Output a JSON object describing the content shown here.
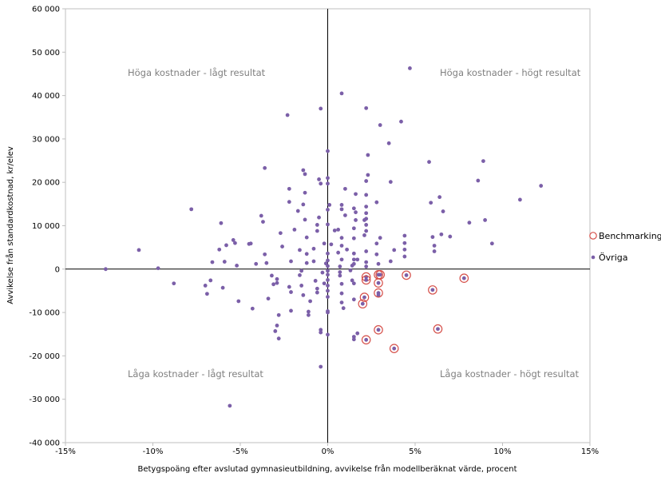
{
  "chart_data": {
    "type": "scatter",
    "xlabel": "Betygspoäng efter avslutad gymnasieutbildning, avvikelse från modellberäknat värde, procent",
    "ylabel": "Avvikelse från standardkostnad, kr/elev",
    "xlim": [
      -0.15,
      0.15
    ],
    "ylim": [
      -40000,
      60000
    ],
    "x_ticks": [
      -0.15,
      -0.1,
      -0.05,
      0,
      0.05,
      0.1,
      0.15
    ],
    "x_tick_labels": [
      "-15%",
      "-10%",
      "-5%",
      "0%",
      "5%",
      "10%",
      "15%"
    ],
    "y_ticks": [
      -40000,
      -30000,
      -20000,
      -10000,
      0,
      10000,
      20000,
      30000,
      40000,
      50000,
      60000
    ],
    "y_tick_labels": [
      "-40 000",
      "-30 000",
      "-20 000",
      "-10 000",
      "0",
      "10 000",
      "20 000",
      "30 000",
      "40 000",
      "50 000",
      "60 000"
    ],
    "grid": false,
    "legend_position": "right",
    "colors": {
      "ovriga": "#7b5fa8",
      "benchmarking_ring": "#d6504a",
      "axis": "#000000",
      "quadrant_label": "#808080"
    },
    "quadrant_labels": {
      "top_left": "Höga kostnader - lågt resultat",
      "top_right": "Höga kostnader - högt resultat",
      "bottom_left": "Låga kostnader - lågt resultat",
      "bottom_right": "Låga kostnader - högt resultat"
    },
    "series": [
      {
        "name": "Benchmarking",
        "marker": "ring",
        "points": [
          [
            0.022,
            -1800
          ],
          [
            0.022,
            -2500
          ],
          [
            0.021,
            -6500
          ],
          [
            0.02,
            -8000
          ],
          [
            0.029,
            -1300
          ],
          [
            0.03,
            -1300
          ],
          [
            0.029,
            -3200
          ],
          [
            0.029,
            -5500
          ],
          [
            0.045,
            -1400
          ],
          [
            0.06,
            -4800
          ],
          [
            0.078,
            -2100
          ],
          [
            0.029,
            -14000
          ],
          [
            0.022,
            -16300
          ],
          [
            0.038,
            -18300
          ],
          [
            0.063,
            -13800
          ]
        ]
      },
      {
        "name": "Övriga",
        "marker": "dot",
        "points": [
          [
            -0.127,
            0
          ],
          [
            -0.108,
            4400
          ],
          [
            -0.097,
            200
          ],
          [
            -0.088,
            -3300
          ],
          [
            -0.078,
            13800
          ],
          [
            -0.07,
            -3800
          ],
          [
            -0.069,
            -5700
          ],
          [
            -0.067,
            -2600
          ],
          [
            -0.066,
            1600
          ],
          [
            -0.062,
            4500
          ],
          [
            -0.061,
            10600
          ],
          [
            -0.06,
            -4300
          ],
          [
            -0.059,
            1700
          ],
          [
            -0.058,
            5500
          ],
          [
            -0.056,
            -31500
          ],
          [
            -0.054,
            6700
          ],
          [
            -0.053,
            6000
          ],
          [
            -0.052,
            800
          ],
          [
            -0.051,
            -7400
          ],
          [
            -0.045,
            5800
          ],
          [
            -0.044,
            5900
          ],
          [
            -0.043,
            -9100
          ],
          [
            -0.041,
            1200
          ],
          [
            -0.038,
            12300
          ],
          [
            -0.037,
            10900
          ],
          [
            -0.036,
            23300
          ],
          [
            -0.036,
            3400
          ],
          [
            -0.035,
            1400
          ],
          [
            -0.034,
            -6800
          ],
          [
            -0.032,
            -1500
          ],
          [
            -0.031,
            -3500
          ],
          [
            -0.03,
            -14300
          ],
          [
            -0.029,
            -13000
          ],
          [
            -0.029,
            -3200
          ],
          [
            -0.029,
            -2300
          ],
          [
            -0.028,
            -10600
          ],
          [
            -0.028,
            -16000
          ],
          [
            -0.027,
            8300
          ],
          [
            -0.026,
            5200
          ],
          [
            -0.023,
            35500
          ],
          [
            -0.022,
            18500
          ],
          [
            -0.022,
            15500
          ],
          [
            -0.022,
            -4100
          ],
          [
            -0.021,
            -5300
          ],
          [
            -0.021,
            -9600
          ],
          [
            -0.021,
            1800
          ],
          [
            -0.019,
            9100
          ],
          [
            -0.017,
            13400
          ],
          [
            -0.016,
            4400
          ],
          [
            -0.016,
            -1400
          ],
          [
            -0.015,
            -400
          ],
          [
            -0.015,
            -3800
          ],
          [
            -0.014,
            -6000
          ],
          [
            -0.014,
            14900
          ],
          [
            -0.014,
            22800
          ],
          [
            -0.013,
            21900
          ],
          [
            -0.013,
            17600
          ],
          [
            -0.013,
            11400
          ],
          [
            -0.012,
            7300
          ],
          [
            -0.012,
            3500
          ],
          [
            -0.012,
            1400
          ],
          [
            -0.011,
            -10600
          ],
          [
            -0.011,
            -9800
          ],
          [
            -0.01,
            -7400
          ],
          [
            -0.008,
            4700
          ],
          [
            -0.008,
            1800
          ],
          [
            -0.007,
            -2700
          ],
          [
            -0.006,
            -4500
          ],
          [
            -0.006,
            -5400
          ],
          [
            -0.006,
            8800
          ],
          [
            -0.006,
            10200
          ],
          [
            -0.005,
            11900
          ],
          [
            -0.005,
            20700
          ],
          [
            -0.004,
            19700
          ],
          [
            -0.004,
            37000
          ],
          [
            -0.004,
            -14000
          ],
          [
            -0.004,
            -14600
          ],
          [
            -0.004,
            -22500
          ],
          [
            -0.003,
            -800
          ],
          [
            -0.002,
            5900
          ],
          [
            -0.002,
            -3300
          ],
          [
            -0.001,
            1300
          ],
          [
            0.0,
            27200
          ],
          [
            0.0,
            21000
          ],
          [
            0.0,
            19700
          ],
          [
            0.0,
            13700
          ],
          [
            0.0,
            10300
          ],
          [
            0.0,
            3600
          ],
          [
            0.0,
            2000
          ],
          [
            0.0,
            700
          ],
          [
            0.0,
            -400
          ],
          [
            0.0,
            -1300
          ],
          [
            0.0,
            -2500
          ],
          [
            0.0,
            -3800
          ],
          [
            0.0,
            -5000
          ],
          [
            0.0,
            -6400
          ],
          [
            0.0,
            -9700
          ],
          [
            0.0,
            -10000
          ],
          [
            0.0,
            -15100
          ],
          [
            0.001,
            14800
          ],
          [
            0.002,
            5700
          ],
          [
            0.004,
            8900
          ],
          [
            0.006,
            9100
          ],
          [
            0.006,
            3800
          ],
          [
            0.007,
            600
          ],
          [
            0.007,
            -700
          ],
          [
            0.007,
            -1500
          ],
          [
            0.008,
            40500
          ],
          [
            0.008,
            14800
          ],
          [
            0.008,
            13800
          ],
          [
            0.008,
            7200
          ],
          [
            0.008,
            5400
          ],
          [
            0.008,
            2200
          ],
          [
            0.008,
            -3400
          ],
          [
            0.008,
            -5600
          ],
          [
            0.008,
            -7700
          ],
          [
            0.009,
            -9000
          ],
          [
            0.01,
            18500
          ],
          [
            0.01,
            12400
          ],
          [
            0.011,
            4500
          ],
          [
            0.013,
            -300
          ],
          [
            0.014,
            800
          ],
          [
            0.014,
            -2600
          ],
          [
            0.015,
            14000
          ],
          [
            0.015,
            9400
          ],
          [
            0.015,
            7100
          ],
          [
            0.015,
            3600
          ],
          [
            0.015,
            2200
          ],
          [
            0.015,
            1200
          ],
          [
            0.015,
            -3300
          ],
          [
            0.015,
            -7000
          ],
          [
            0.015,
            -15600
          ],
          [
            0.015,
            -16200
          ],
          [
            0.016,
            17300
          ],
          [
            0.016,
            13100
          ],
          [
            0.016,
            11300
          ],
          [
            0.017,
            2200
          ],
          [
            0.017,
            -14800
          ],
          [
            0.021,
            11300
          ],
          [
            0.021,
            7800
          ],
          [
            0.022,
            37100
          ],
          [
            0.022,
            20300
          ],
          [
            0.022,
            17100
          ],
          [
            0.022,
            14400
          ],
          [
            0.022,
            12900
          ],
          [
            0.022,
            11600
          ],
          [
            0.022,
            10200
          ],
          [
            0.022,
            8800
          ],
          [
            0.022,
            4100
          ],
          [
            0.022,
            1600
          ],
          [
            0.022,
            600
          ],
          [
            0.023,
            26300
          ],
          [
            0.023,
            21700
          ],
          [
            0.028,
            15400
          ],
          [
            0.028,
            5900
          ],
          [
            0.028,
            3400
          ],
          [
            0.029,
            1200
          ],
          [
            0.029,
            -6000
          ],
          [
            0.03,
            33200
          ],
          [
            0.03,
            7200
          ],
          [
            0.035,
            29000
          ],
          [
            0.036,
            20100
          ],
          [
            0.036,
            1800
          ],
          [
            0.038,
            4400
          ],
          [
            0.042,
            34000
          ],
          [
            0.044,
            7700
          ],
          [
            0.044,
            6000
          ],
          [
            0.044,
            4500
          ],
          [
            0.044,
            2900
          ],
          [
            0.047,
            46300
          ],
          [
            0.058,
            24700
          ],
          [
            0.059,
            15300
          ],
          [
            0.06,
            7400
          ],
          [
            0.061,
            5400
          ],
          [
            0.061,
            4100
          ],
          [
            0.064,
            16600
          ],
          [
            0.065,
            8000
          ],
          [
            0.066,
            13300
          ],
          [
            0.07,
            7500
          ],
          [
            0.081,
            10700
          ],
          [
            0.086,
            20400
          ],
          [
            0.089,
            24900
          ],
          [
            0.09,
            11300
          ],
          [
            0.094,
            5900
          ],
          [
            0.11,
            16000
          ],
          [
            0.122,
            19200
          ]
        ]
      }
    ]
  }
}
